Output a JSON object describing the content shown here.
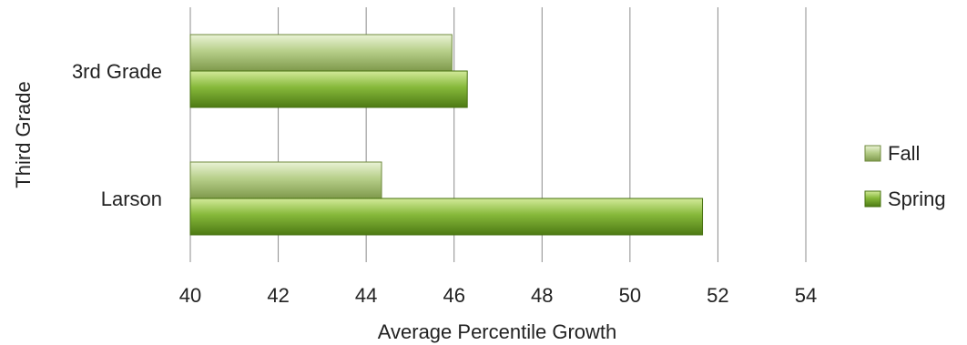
{
  "chart_data": {
    "type": "bar",
    "orientation": "horizontal",
    "categories": [
      "3rd Grade",
      "Larson"
    ],
    "series": [
      {
        "name": "Fall",
        "values": [
          45.95,
          44.35
        ],
        "color": "#a9c27a"
      },
      {
        "name": "Spring",
        "values": [
          46.3,
          51.65
        ],
        "color": "#7aaa2e"
      }
    ],
    "xlabel": "Average Percentile Growth",
    "ylabel": "Third Grade",
    "xlim": [
      40,
      54
    ],
    "xticks": [
      "40",
      "42",
      "44",
      "46",
      "48",
      "50",
      "52",
      "54"
    ],
    "grid": true,
    "legend": "right"
  }
}
